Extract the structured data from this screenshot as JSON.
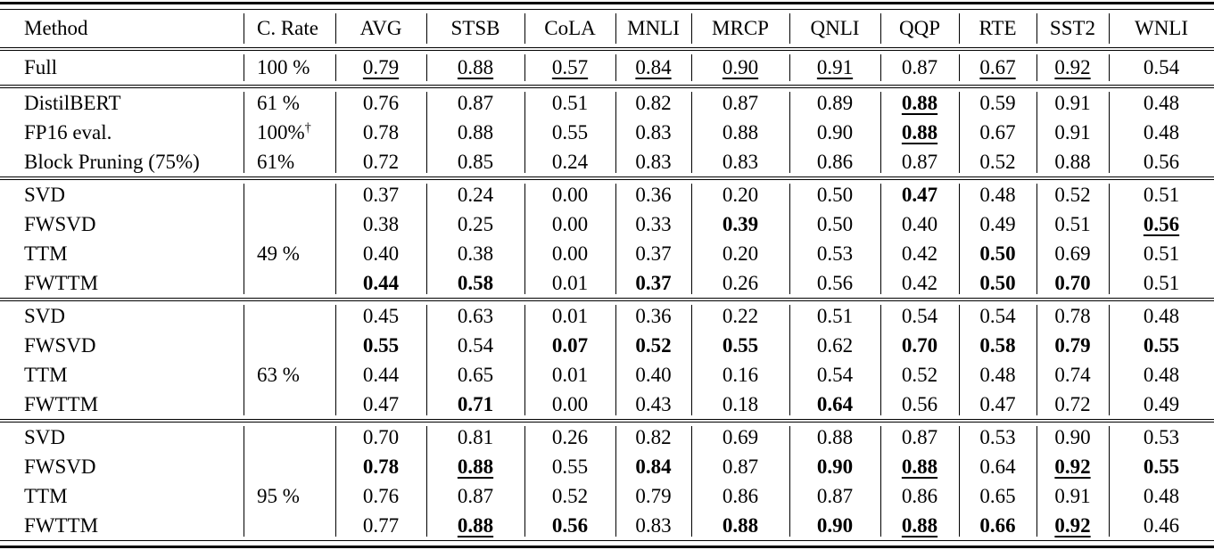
{
  "table": {
    "columns": [
      "Method",
      "C. Rate",
      "AVG",
      "STSB",
      "CoLA",
      "MNLI",
      "MRCP",
      "QNLI",
      "QQP",
      "RTE",
      "SST2",
      "WNLI"
    ],
    "groups": [
      {
        "rows": [
          {
            "method": "Full",
            "rate": "100 %",
            "cells": [
              {
                "v": "0.79",
                "u": true
              },
              {
                "v": "0.88",
                "u": true
              },
              {
                "v": "0.57",
                "u": true
              },
              {
                "v": "0.84",
                "u": true
              },
              {
                "v": "0.90",
                "u": true
              },
              {
                "v": "0.91",
                "u": true
              },
              {
                "v": "0.87"
              },
              {
                "v": "0.67",
                "u": true
              },
              {
                "v": "0.92",
                "u": true
              },
              {
                "v": "0.54"
              }
            ]
          }
        ]
      },
      {
        "rows": [
          {
            "method": "DistilBERT",
            "rate": "61 %",
            "cells": [
              {
                "v": "0.76"
              },
              {
                "v": "0.87"
              },
              {
                "v": "0.51"
              },
              {
                "v": "0.82"
              },
              {
                "v": "0.87"
              },
              {
                "v": "0.89"
              },
              {
                "v": "0.88",
                "b": true,
                "u": true
              },
              {
                "v": "0.59"
              },
              {
                "v": "0.91"
              },
              {
                "v": "0.48"
              }
            ]
          },
          {
            "method": "FP16 eval.",
            "rate": "100%",
            "rate_sup": "†",
            "cells": [
              {
                "v": "0.78"
              },
              {
                "v": "0.88"
              },
              {
                "v": "0.55"
              },
              {
                "v": "0.83"
              },
              {
                "v": "0.88"
              },
              {
                "v": "0.90"
              },
              {
                "v": "0.88",
                "b": true,
                "u": true
              },
              {
                "v": "0.67"
              },
              {
                "v": "0.91"
              },
              {
                "v": "0.48"
              }
            ]
          },
          {
            "method": "Block Pruning (75%)",
            "rate": "61%",
            "cells": [
              {
                "v": "0.72"
              },
              {
                "v": "0.85"
              },
              {
                "v": "0.24"
              },
              {
                "v": "0.83"
              },
              {
                "v": "0.83"
              },
              {
                "v": "0.86"
              },
              {
                "v": "0.87"
              },
              {
                "v": "0.52"
              },
              {
                "v": "0.88"
              },
              {
                "v": "0.56"
              }
            ]
          }
        ]
      },
      {
        "rows": [
          {
            "method": "SVD",
            "rate": "",
            "cells": [
              {
                "v": "0.37"
              },
              {
                "v": "0.24"
              },
              {
                "v": "0.00"
              },
              {
                "v": "0.36"
              },
              {
                "v": "0.20"
              },
              {
                "v": "0.50"
              },
              {
                "v": "0.47",
                "b": true
              },
              {
                "v": "0.48"
              },
              {
                "v": "0.52"
              },
              {
                "v": "0.51"
              }
            ]
          },
          {
            "method": "FWSVD",
            "rate": "",
            "cells": [
              {
                "v": "0.38"
              },
              {
                "v": "0.25"
              },
              {
                "v": "0.00"
              },
              {
                "v": "0.33"
              },
              {
                "v": "0.39",
                "b": true
              },
              {
                "v": "0.50"
              },
              {
                "v": "0.40"
              },
              {
                "v": "0.49"
              },
              {
                "v": "0.51"
              },
              {
                "v": "0.56",
                "b": true,
                "u": true
              }
            ]
          },
          {
            "method": "TTM",
            "rate": "49 %",
            "cells": [
              {
                "v": "0.40"
              },
              {
                "v": "0.38"
              },
              {
                "v": "0.00"
              },
              {
                "v": "0.37"
              },
              {
                "v": "0.20"
              },
              {
                "v": "0.53"
              },
              {
                "v": "0.42"
              },
              {
                "v": "0.50",
                "b": true
              },
              {
                "v": "0.69"
              },
              {
                "v": "0.51"
              }
            ]
          },
          {
            "method": "FWTTM",
            "rate": "",
            "cells": [
              {
                "v": "0.44",
                "b": true
              },
              {
                "v": "0.58",
                "b": true
              },
              {
                "v": "0.01"
              },
              {
                "v": "0.37",
                "b": true
              },
              {
                "v": "0.26"
              },
              {
                "v": "0.56"
              },
              {
                "v": "0.42"
              },
              {
                "v": "0.50",
                "b": true
              },
              {
                "v": "0.70",
                "b": true
              },
              {
                "v": "0.51"
              }
            ]
          }
        ]
      },
      {
        "rows": [
          {
            "method": "SVD",
            "rate": "",
            "cells": [
              {
                "v": "0.45"
              },
              {
                "v": "0.63"
              },
              {
                "v": "0.01"
              },
              {
                "v": "0.36"
              },
              {
                "v": "0.22"
              },
              {
                "v": "0.51"
              },
              {
                "v": "0.54"
              },
              {
                "v": "0.54"
              },
              {
                "v": "0.78"
              },
              {
                "v": "0.48"
              }
            ]
          },
          {
            "method": "FWSVD",
            "rate": "",
            "cells": [
              {
                "v": "0.55",
                "b": true
              },
              {
                "v": "0.54"
              },
              {
                "v": "0.07",
                "b": true
              },
              {
                "v": "0.52",
                "b": true
              },
              {
                "v": "0.55",
                "b": true
              },
              {
                "v": "0.62"
              },
              {
                "v": "0.70",
                "b": true
              },
              {
                "v": "0.58",
                "b": true
              },
              {
                "v": "0.79",
                "b": true
              },
              {
                "v": "0.55",
                "b": true
              }
            ]
          },
          {
            "method": "TTM",
            "rate": "63 %",
            "cells": [
              {
                "v": "0.44"
              },
              {
                "v": "0.65"
              },
              {
                "v": "0.01"
              },
              {
                "v": "0.40"
              },
              {
                "v": "0.16"
              },
              {
                "v": "0.54"
              },
              {
                "v": "0.52"
              },
              {
                "v": "0.48"
              },
              {
                "v": "0.74"
              },
              {
                "v": "0.48"
              }
            ]
          },
          {
            "method": "FWTTM",
            "rate": "",
            "cells": [
              {
                "v": "0.47"
              },
              {
                "v": "0.71",
                "b": true
              },
              {
                "v": "0.00"
              },
              {
                "v": "0.43"
              },
              {
                "v": "0.18"
              },
              {
                "v": "0.64",
                "b": true
              },
              {
                "v": "0.56"
              },
              {
                "v": "0.47"
              },
              {
                "v": "0.72"
              },
              {
                "v": "0.49"
              }
            ]
          }
        ]
      },
      {
        "rows": [
          {
            "method": "SVD",
            "rate": "",
            "cells": [
              {
                "v": "0.70"
              },
              {
                "v": "0.81"
              },
              {
                "v": "0.26"
              },
              {
                "v": "0.82"
              },
              {
                "v": "0.69"
              },
              {
                "v": "0.88"
              },
              {
                "v": "0.87"
              },
              {
                "v": "0.53"
              },
              {
                "v": "0.90"
              },
              {
                "v": "0.53"
              }
            ]
          },
          {
            "method": "FWSVD",
            "rate": "",
            "cells": [
              {
                "v": "0.78",
                "b": true
              },
              {
                "v": "0.88",
                "b": true,
                "u": true
              },
              {
                "v": "0.55"
              },
              {
                "v": "0.84",
                "b": true
              },
              {
                "v": "0.87"
              },
              {
                "v": "0.90",
                "b": true
              },
              {
                "v": "0.88",
                "b": true,
                "u": true
              },
              {
                "v": "0.64"
              },
              {
                "v": "0.92",
                "b": true,
                "u": true
              },
              {
                "v": "0.55",
                "b": true
              }
            ]
          },
          {
            "method": "TTM",
            "rate": "95 %",
            "cells": [
              {
                "v": "0.76"
              },
              {
                "v": "0.87"
              },
              {
                "v": "0.52"
              },
              {
                "v": "0.79"
              },
              {
                "v": "0.86"
              },
              {
                "v": "0.87"
              },
              {
                "v": "0.86"
              },
              {
                "v": "0.65"
              },
              {
                "v": "0.91"
              },
              {
                "v": "0.48"
              }
            ]
          },
          {
            "method": "FWTTM",
            "rate": "",
            "cells": [
              {
                "v": "0.77"
              },
              {
                "v": "0.88",
                "b": true,
                "u": true
              },
              {
                "v": "0.56",
                "b": true
              },
              {
                "v": "0.83"
              },
              {
                "v": "0.88",
                "b": true
              },
              {
                "v": "0.90",
                "b": true
              },
              {
                "v": "0.88",
                "b": true,
                "u": true
              },
              {
                "v": "0.66",
                "b": true
              },
              {
                "v": "0.92",
                "b": true,
                "u": true
              },
              {
                "v": "0.46"
              }
            ]
          }
        ]
      }
    ]
  },
  "colors": {
    "text": "#000000",
    "background": "#ffffff",
    "rule": "#000000"
  }
}
